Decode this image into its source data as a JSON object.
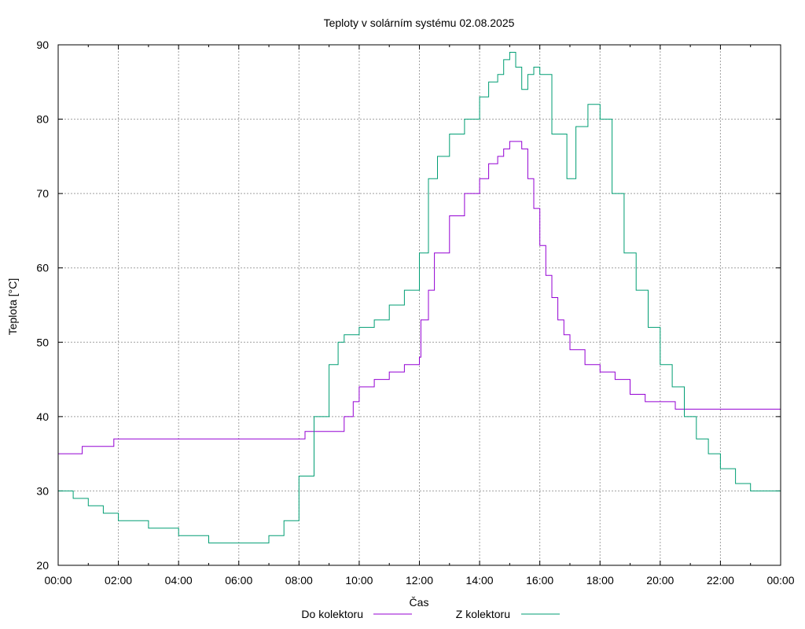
{
  "chart_data": {
    "type": "line",
    "title": "Teploty v solárním systému 02.08.2025",
    "xlabel": "Čas",
    "ylabel": "Teplota [°C]",
    "xlim": [
      0,
      24
    ],
    "ylim": [
      20,
      90
    ],
    "grid": true,
    "legend_position": "bottom-center",
    "x_ticks": [
      {
        "value": 0,
        "label": "00:00"
      },
      {
        "value": 2,
        "label": "02:00"
      },
      {
        "value": 4,
        "label": "04:00"
      },
      {
        "value": 6,
        "label": "06:00"
      },
      {
        "value": 8,
        "label": "08:00"
      },
      {
        "value": 10,
        "label": "10:00"
      },
      {
        "value": 12,
        "label": "12:00"
      },
      {
        "value": 14,
        "label": "14:00"
      },
      {
        "value": 16,
        "label": "16:00"
      },
      {
        "value": 18,
        "label": "18:00"
      },
      {
        "value": 20,
        "label": "20:00"
      },
      {
        "value": 22,
        "label": "22:00"
      },
      {
        "value": 24,
        "label": "00:00"
      }
    ],
    "y_ticks": [
      {
        "value": 20,
        "label": "20"
      },
      {
        "value": 30,
        "label": "30"
      },
      {
        "value": 40,
        "label": "40"
      },
      {
        "value": 50,
        "label": "50"
      },
      {
        "value": 60,
        "label": "60"
      },
      {
        "value": 70,
        "label": "70"
      },
      {
        "value": 80,
        "label": "80"
      },
      {
        "value": 90,
        "label": "90"
      }
    ],
    "series": [
      {
        "name": "Do kolektoru",
        "color": "#9400d3",
        "x": [
          0,
          0.75,
          0.8,
          1.8,
          1.85,
          5.0,
          5.5,
          6.0,
          7.5,
          7.6,
          8.2,
          9.3,
          9.5,
          9.8,
          10.0,
          10.5,
          11.0,
          11.5,
          12.0,
          12.05,
          12.3,
          12.5,
          13.0,
          13.5,
          14.0,
          14.3,
          14.6,
          14.8,
          15.0,
          15.2,
          15.4,
          15.6,
          15.8,
          16.0,
          16.2,
          16.4,
          16.6,
          16.8,
          17.0,
          17.5,
          18.0,
          18.5,
          19.0,
          19.5,
          20.0,
          20.5,
          21.0,
          21.5,
          22.0,
          22.5,
          23.0,
          23.5,
          24.0
        ],
        "y": [
          35,
          35,
          36,
          36,
          37,
          37,
          37,
          37,
          37,
          37,
          38,
          38,
          40,
          42,
          44,
          45,
          46,
          47,
          48,
          53,
          57,
          62,
          67,
          70,
          72,
          74,
          75,
          76,
          77,
          77,
          76,
          72,
          68,
          63,
          59,
          56,
          53,
          51,
          49,
          47,
          46,
          45,
          43,
          42,
          42,
          41,
          41,
          41,
          41,
          41,
          41,
          41,
          41
        ]
      },
      {
        "name": "Z kolektoru",
        "color": "#009e73",
        "x": [
          0,
          0.5,
          1.0,
          1.5,
          2.0,
          3.0,
          4.0,
          4.5,
          5.0,
          6.0,
          6.5,
          7.0,
          7.5,
          8.0,
          8.5,
          9.0,
          9.3,
          9.5,
          10.0,
          10.5,
          11.0,
          11.5,
          12.0,
          12.3,
          12.6,
          13.0,
          13.5,
          14.0,
          14.3,
          14.6,
          14.8,
          15.0,
          15.2,
          15.4,
          15.6,
          15.8,
          16.0,
          16.4,
          16.9,
          17.2,
          17.6,
          18.0,
          18.4,
          18.8,
          19.2,
          19.6,
          20.0,
          20.4,
          20.8,
          21.2,
          21.6,
          22.0,
          22.5,
          23.0,
          23.5,
          24.0
        ],
        "y": [
          30,
          29,
          28,
          27,
          26,
          25,
          24,
          24,
          23,
          23,
          23,
          24,
          26,
          32,
          40,
          47,
          50,
          51,
          52,
          53,
          55,
          57,
          62,
          72,
          75,
          78,
          80,
          83,
          85,
          86,
          88,
          89,
          87,
          84,
          86,
          87,
          86,
          78,
          72,
          79,
          82,
          80,
          70,
          62,
          57,
          52,
          47,
          44,
          40,
          37,
          35,
          33,
          31,
          30,
          30,
          29
        ]
      }
    ]
  }
}
